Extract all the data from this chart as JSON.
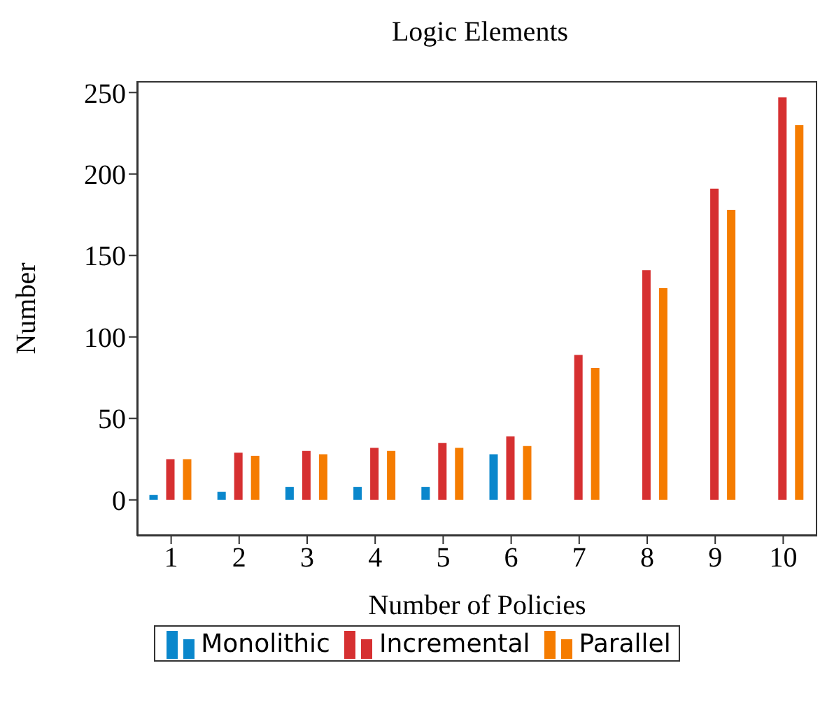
{
  "chart_data": {
    "type": "bar",
    "title": "Logic Elements",
    "xlabel": "Number of Policies",
    "ylabel": "Number",
    "categories": [
      "1",
      "2",
      "3",
      "4",
      "5",
      "6",
      "7",
      "8",
      "9",
      "10"
    ],
    "series": [
      {
        "name": "Monolithic",
        "color": "#0a87cc",
        "values": [
          3,
          5,
          8,
          8,
          8,
          28,
          null,
          null,
          null,
          null
        ]
      },
      {
        "name": "Incremental",
        "color": "#d63031",
        "values": [
          25,
          29,
          30,
          32,
          35,
          39,
          89,
          141,
          191,
          247
        ]
      },
      {
        "name": "Parallel",
        "color": "#f57c00",
        "values": [
          25,
          27,
          28,
          30,
          32,
          33,
          81,
          130,
          178,
          230
        ]
      }
    ],
    "ylim": [
      -22,
      257
    ],
    "yticks": [
      0,
      50,
      100,
      150,
      200,
      250
    ],
    "legend": "bottom"
  }
}
